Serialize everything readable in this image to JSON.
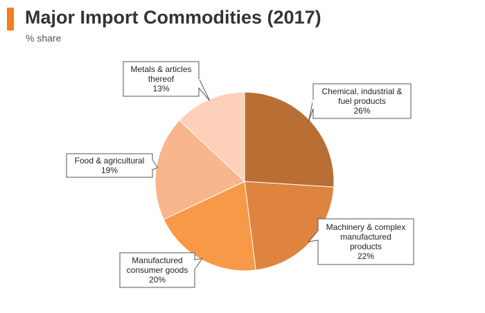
{
  "header": {
    "title": "Major Import Commodities (2017)",
    "subtitle": "% share",
    "accent_color": "#f47d20"
  },
  "chart_data": {
    "type": "pie",
    "title": "Major Import Commodities (2017)",
    "subtitle": "% share",
    "unit": "%",
    "slices": [
      {
        "label": "Chemical, industrial & fuel products",
        "label_lines": [
          "Chemical, industrial &",
          "fuel products"
        ],
        "value": 26,
        "value_text": "26%",
        "color": "#b96e33"
      },
      {
        "label": "Machinery & complex manufactured products",
        "label_lines": [
          "Machinery & complex",
          "manufactured",
          "products"
        ],
        "value": 22,
        "value_text": "22%",
        "color": "#de843f"
      },
      {
        "label": "Manufactured consumer goods",
        "label_lines": [
          "Manufactured",
          "consumer goods"
        ],
        "value": 20,
        "value_text": "20%",
        "color": "#f79947"
      },
      {
        "label": "Food & agricultural",
        "label_lines": [
          "Food & agricultural"
        ],
        "value": 19,
        "value_text": "19%",
        "color": "#f9b68c"
      },
      {
        "label": "Metals & articles thereof",
        "label_lines": [
          "Metals & articles",
          "thereof"
        ],
        "value": 13,
        "value_text": "13%",
        "color": "#fcd0b9"
      }
    ]
  }
}
